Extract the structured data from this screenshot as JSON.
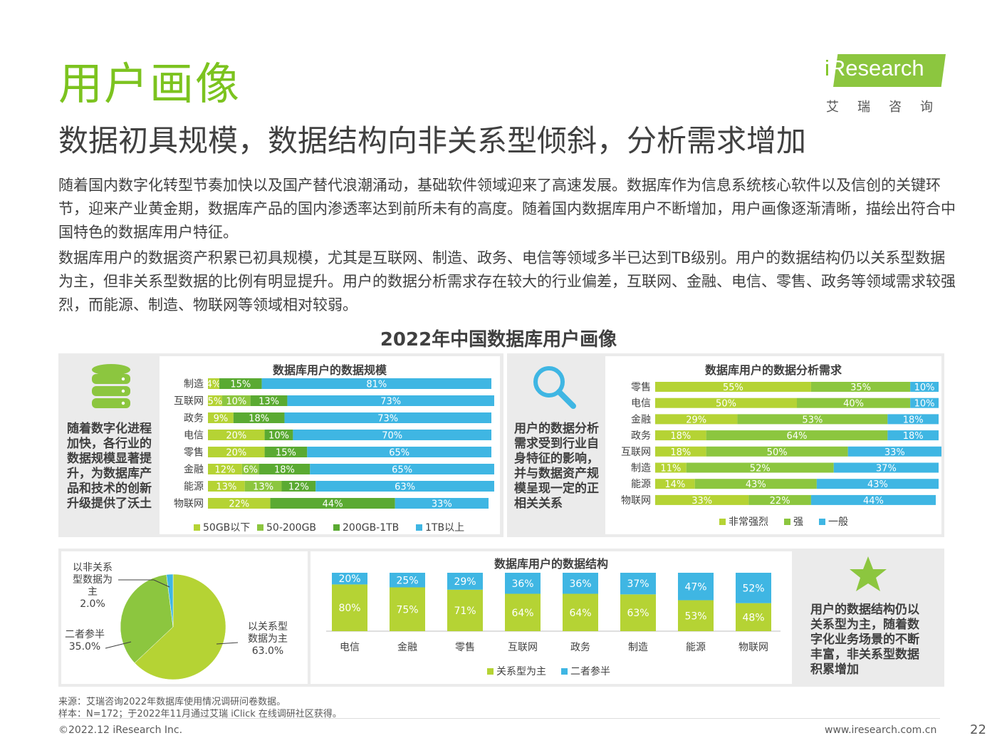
{
  "title": "用户画像",
  "subtitle": "数据初具规模，数据结构向非关系型倾斜，分析需求增加",
  "brand": {
    "name_prefix": "i",
    "name_rest": "Research",
    "cn": "艾瑞咨询"
  },
  "paragraphs": [
    "随着国内数字化转型节奏加快以及国产替代浪潮涌动，基础软件领域迎来了高速发展。数据库作为信息系统核心软件以及信创的关键环节，迎来产业黄金期，数据库产品的国内渗透率达到前所未有的高度。随着国内数据库用户不断增加，用户画像逐渐清晰，描绘出符合中国特色的数据库用户特征。",
    "数据库用户的数据资产积累已初具规模，尤其是互联网、制造、政务、电信等领域多半已达到TB级别。用户的数据结构仍以关系型数据为主，但非关系型数据的比例有明显提升。用户的数据分析需求存在较大的行业偏差，互联网、金融、电信、零售、政务等领域需求较强烈，而能源、制造、物联网等领域相对较弱。"
  ],
  "chart_heading": "2022年中国数据库用户画像",
  "panels": {
    "scale_note": "随着数字化进程加快，各行业的数据规模显著提升，为数据库产品和技术的创新升级提供了沃土",
    "demand_note": "用户的数据分析需求受到行业自身特征的影响，并与数据资产规模呈现一定的正相关关系",
    "structure_note": "用户的数据结构仍以关系型为主，随着数字化业务场景的不断丰富，非关系型数据积累增加"
  },
  "colors": {
    "green_light": "#b5d334",
    "green_mid": "#8cc63f",
    "green_dark": "#5aaa32",
    "blue": "#3fb6e3",
    "brand": "#7cc31f"
  },
  "icons": {
    "scale": "database-icon",
    "demand": "magnifier-icon",
    "structure": "star-icon"
  },
  "chart_data": [
    {
      "type": "bar",
      "orientation": "horizontal-stacked-100",
      "title": "数据库用户的数据规模",
      "categories": [
        "制造",
        "互联网",
        "政务",
        "电信",
        "零售",
        "金融",
        "能源",
        "物联网"
      ],
      "series": [
        {
          "name": "50GB以下",
          "values": [
            4,
            5,
            9,
            20,
            20,
            12,
            13,
            22
          ],
          "labels": [
            "4%",
            "5%",
            "9%",
            "20%",
            "20%",
            "12%",
            "13%",
            "22%"
          ]
        },
        {
          "name": "50-200GB",
          "values": [
            0,
            10,
            0,
            0,
            0,
            6,
            13,
            0
          ],
          "labels": [
            "",
            "10%",
            "",
            "",
            "",
            "6%",
            "13%",
            ""
          ]
        },
        {
          "name": "200GB-1TB",
          "values": [
            15,
            13,
            18,
            10,
            15,
            18,
            12,
            44
          ],
          "labels": [
            "15%",
            "13%",
            "18%",
            "10%",
            "15%",
            "18%",
            "12%",
            "44%"
          ]
        },
        {
          "name": "1TB以上",
          "values": [
            81,
            73,
            73,
            70,
            65,
            65,
            63,
            33
          ],
          "labels": [
            "81%",
            "73%",
            "73%",
            "70%",
            "65%",
            "65%",
            "63%",
            "33%"
          ]
        }
      ]
    },
    {
      "type": "bar",
      "orientation": "horizontal-stacked-100",
      "title": "数据库用户的数据分析需求",
      "categories": [
        "零售",
        "电信",
        "金融",
        "政务",
        "互联网",
        "制造",
        "能源",
        "物联网"
      ],
      "series": [
        {
          "name": "非常强烈",
          "values": [
            55,
            50,
            29,
            18,
            18,
            11,
            14,
            33
          ],
          "labels": [
            "55%",
            "50%",
            "29%",
            "18%",
            "18%",
            "11%",
            "14%",
            "33%"
          ]
        },
        {
          "name": "强",
          "values": [
            35,
            40,
            53,
            64,
            50,
            52,
            43,
            22
          ],
          "labels": [
            "35%",
            "40%",
            "53%",
            "64%",
            "50%",
            "52%",
            "43%",
            "22%"
          ]
        },
        {
          "name": "一般",
          "values": [
            10,
            10,
            18,
            18,
            33,
            37,
            43,
            44
          ],
          "labels": [
            "10%",
            "10%",
            "18%",
            "18%",
            "33%",
            "37%",
            "43%",
            "44%"
          ]
        }
      ]
    },
    {
      "type": "pie",
      "slices": [
        {
          "label": "以关系型数据为主",
          "value": 63.0,
          "value_label": "63.0%"
        },
        {
          "label": "二者参半",
          "value": 35.0,
          "value_label": "35.0%"
        },
        {
          "label": "以非关系型数据为主",
          "value": 2.0,
          "value_label": "2.0%"
        }
      ]
    },
    {
      "type": "bar",
      "orientation": "vertical-stacked-100",
      "title": "数据库用户的数据结构",
      "categories": [
        "电信",
        "金融",
        "零售",
        "互联网",
        "政务",
        "制造",
        "能源",
        "物联网"
      ],
      "series": [
        {
          "name": "关系型为主",
          "values": [
            80,
            75,
            71,
            64,
            64,
            63,
            53,
            48
          ],
          "labels": [
            "80%",
            "75%",
            "71%",
            "64%",
            "64%",
            "63%",
            "53%",
            "48%"
          ]
        },
        {
          "name": "二者参半",
          "values": [
            20,
            25,
            29,
            36,
            36,
            37,
            47,
            52
          ],
          "labels": [
            "20%",
            "25%",
            "29%",
            "36%",
            "36%",
            "37%",
            "47%",
            "52%"
          ]
        }
      ]
    }
  ],
  "source": "来源：艾瑞咨询2022年数据库使用情况调研问卷数据。",
  "sample": "样本：N=172；于2022年11月通过艾瑞 iClick 在线调研社区获得。",
  "footer": {
    "copyright": "©2022.12 iResearch Inc.",
    "url": "www.iresearch.com.cn",
    "page": "22"
  }
}
